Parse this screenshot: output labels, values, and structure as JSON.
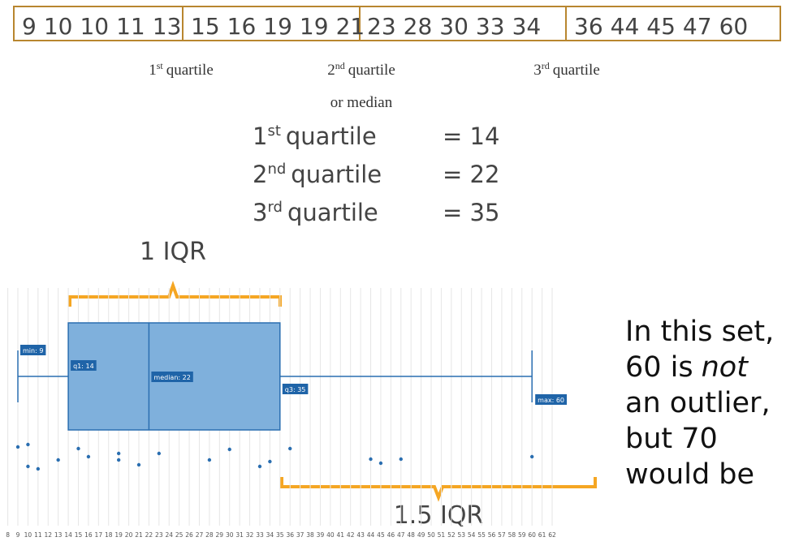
{
  "number_row": {
    "groups": [
      [
        9,
        10,
        10,
        11,
        13
      ],
      [
        15,
        16,
        19,
        19,
        21
      ],
      [
        23,
        28,
        30,
        33,
        34
      ],
      [
        36,
        44,
        45,
        47,
        60
      ]
    ]
  },
  "quartile_captions": [
    {
      "ordinal": "1",
      "suffix": "st",
      "text": "quartile"
    },
    {
      "ordinal": "2",
      "suffix": "nd",
      "text": "quartile",
      "extra": "or median"
    },
    {
      "ordinal": "3",
      "suffix": "rd",
      "text": "quartile"
    }
  ],
  "quartiles": [
    {
      "ordinal": "1",
      "suffix": "st",
      "text": "quartile",
      "equals": "= 14"
    },
    {
      "ordinal": "2",
      "suffix": "nd",
      "text": "quartile",
      "equals": "= 22"
    },
    {
      "ordinal": "3",
      "suffix": "rd",
      "text": "quartile",
      "equals": "= 35"
    }
  ],
  "iqr_label": "1 IQR",
  "iqr15_label": "1.5 IQR",
  "note": {
    "line1": "In this set,",
    "line2": [
      "60 is",
      "not"
    ],
    "line3": "an outlier,",
    "line4": "but 70",
    "line5": "would be"
  },
  "boxplot": {
    "xlim": [
      8,
      62
    ],
    "xticks": [
      8,
      9,
      10,
      11,
      12,
      13,
      14,
      15,
      16,
      17,
      18,
      19,
      20,
      21,
      22,
      23,
      24,
      25,
      26,
      27,
      28,
      29,
      30,
      31,
      32,
      33,
      34,
      35,
      36,
      37,
      38,
      39,
      40,
      41,
      42,
      43,
      44,
      45,
      46,
      47,
      48,
      49,
      50,
      51,
      52,
      53,
      54,
      55,
      56,
      57,
      58,
      59,
      60,
      61,
      62
    ],
    "min": 9,
    "q1": 14,
    "median": 22,
    "q3": 35,
    "max": 60,
    "labels": {
      "min": "min: 9",
      "q1": "q1: 14",
      "median": "median: 22",
      "q3": "q3: 35",
      "max": "max: 60"
    }
  }
}
